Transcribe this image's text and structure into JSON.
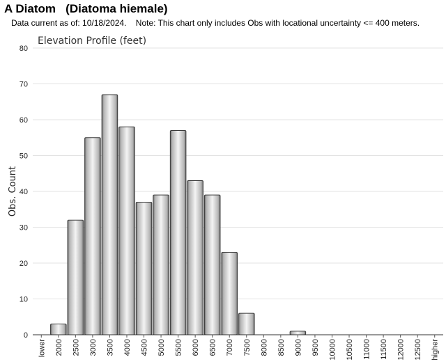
{
  "header": {
    "title": "A Diatom   (Diatoma hiemale)",
    "note": "Data current as of: 10/18/2024.    Note: This chart only includes Obs with locational uncertainty <= 400 meters."
  },
  "chart_data": {
    "type": "bar",
    "title": "Elevation Profile (feet)",
    "xlabel": "",
    "ylabel": "Obs. Count",
    "ylim": [
      0,
      80
    ],
    "yticks": [
      0,
      10,
      20,
      30,
      40,
      50,
      60,
      70,
      80
    ],
    "grid": true,
    "legend": "none",
    "categories": [
      "lower",
      "2000",
      "2500",
      "3000",
      "3500",
      "4000",
      "4500",
      "5000",
      "5500",
      "6000",
      "6500",
      "7000",
      "7500",
      "8000",
      "8500",
      "9000",
      "9500",
      "10000",
      "10500",
      "11000",
      "11500",
      "12000",
      "12500",
      "higher"
    ],
    "values": [
      0,
      3,
      32,
      55,
      67,
      58,
      37,
      39,
      57,
      43,
      39,
      23,
      6,
      0,
      0,
      1,
      0,
      0,
      0,
      0,
      0,
      0,
      0,
      0
    ],
    "colors": {
      "bar_light": "#f4f4f4",
      "bar_mid": "#b4b4b4",
      "bar_dark": "#6a6a6a",
      "stroke": "#3a3a3a",
      "grid": "#e3e3e3"
    }
  }
}
